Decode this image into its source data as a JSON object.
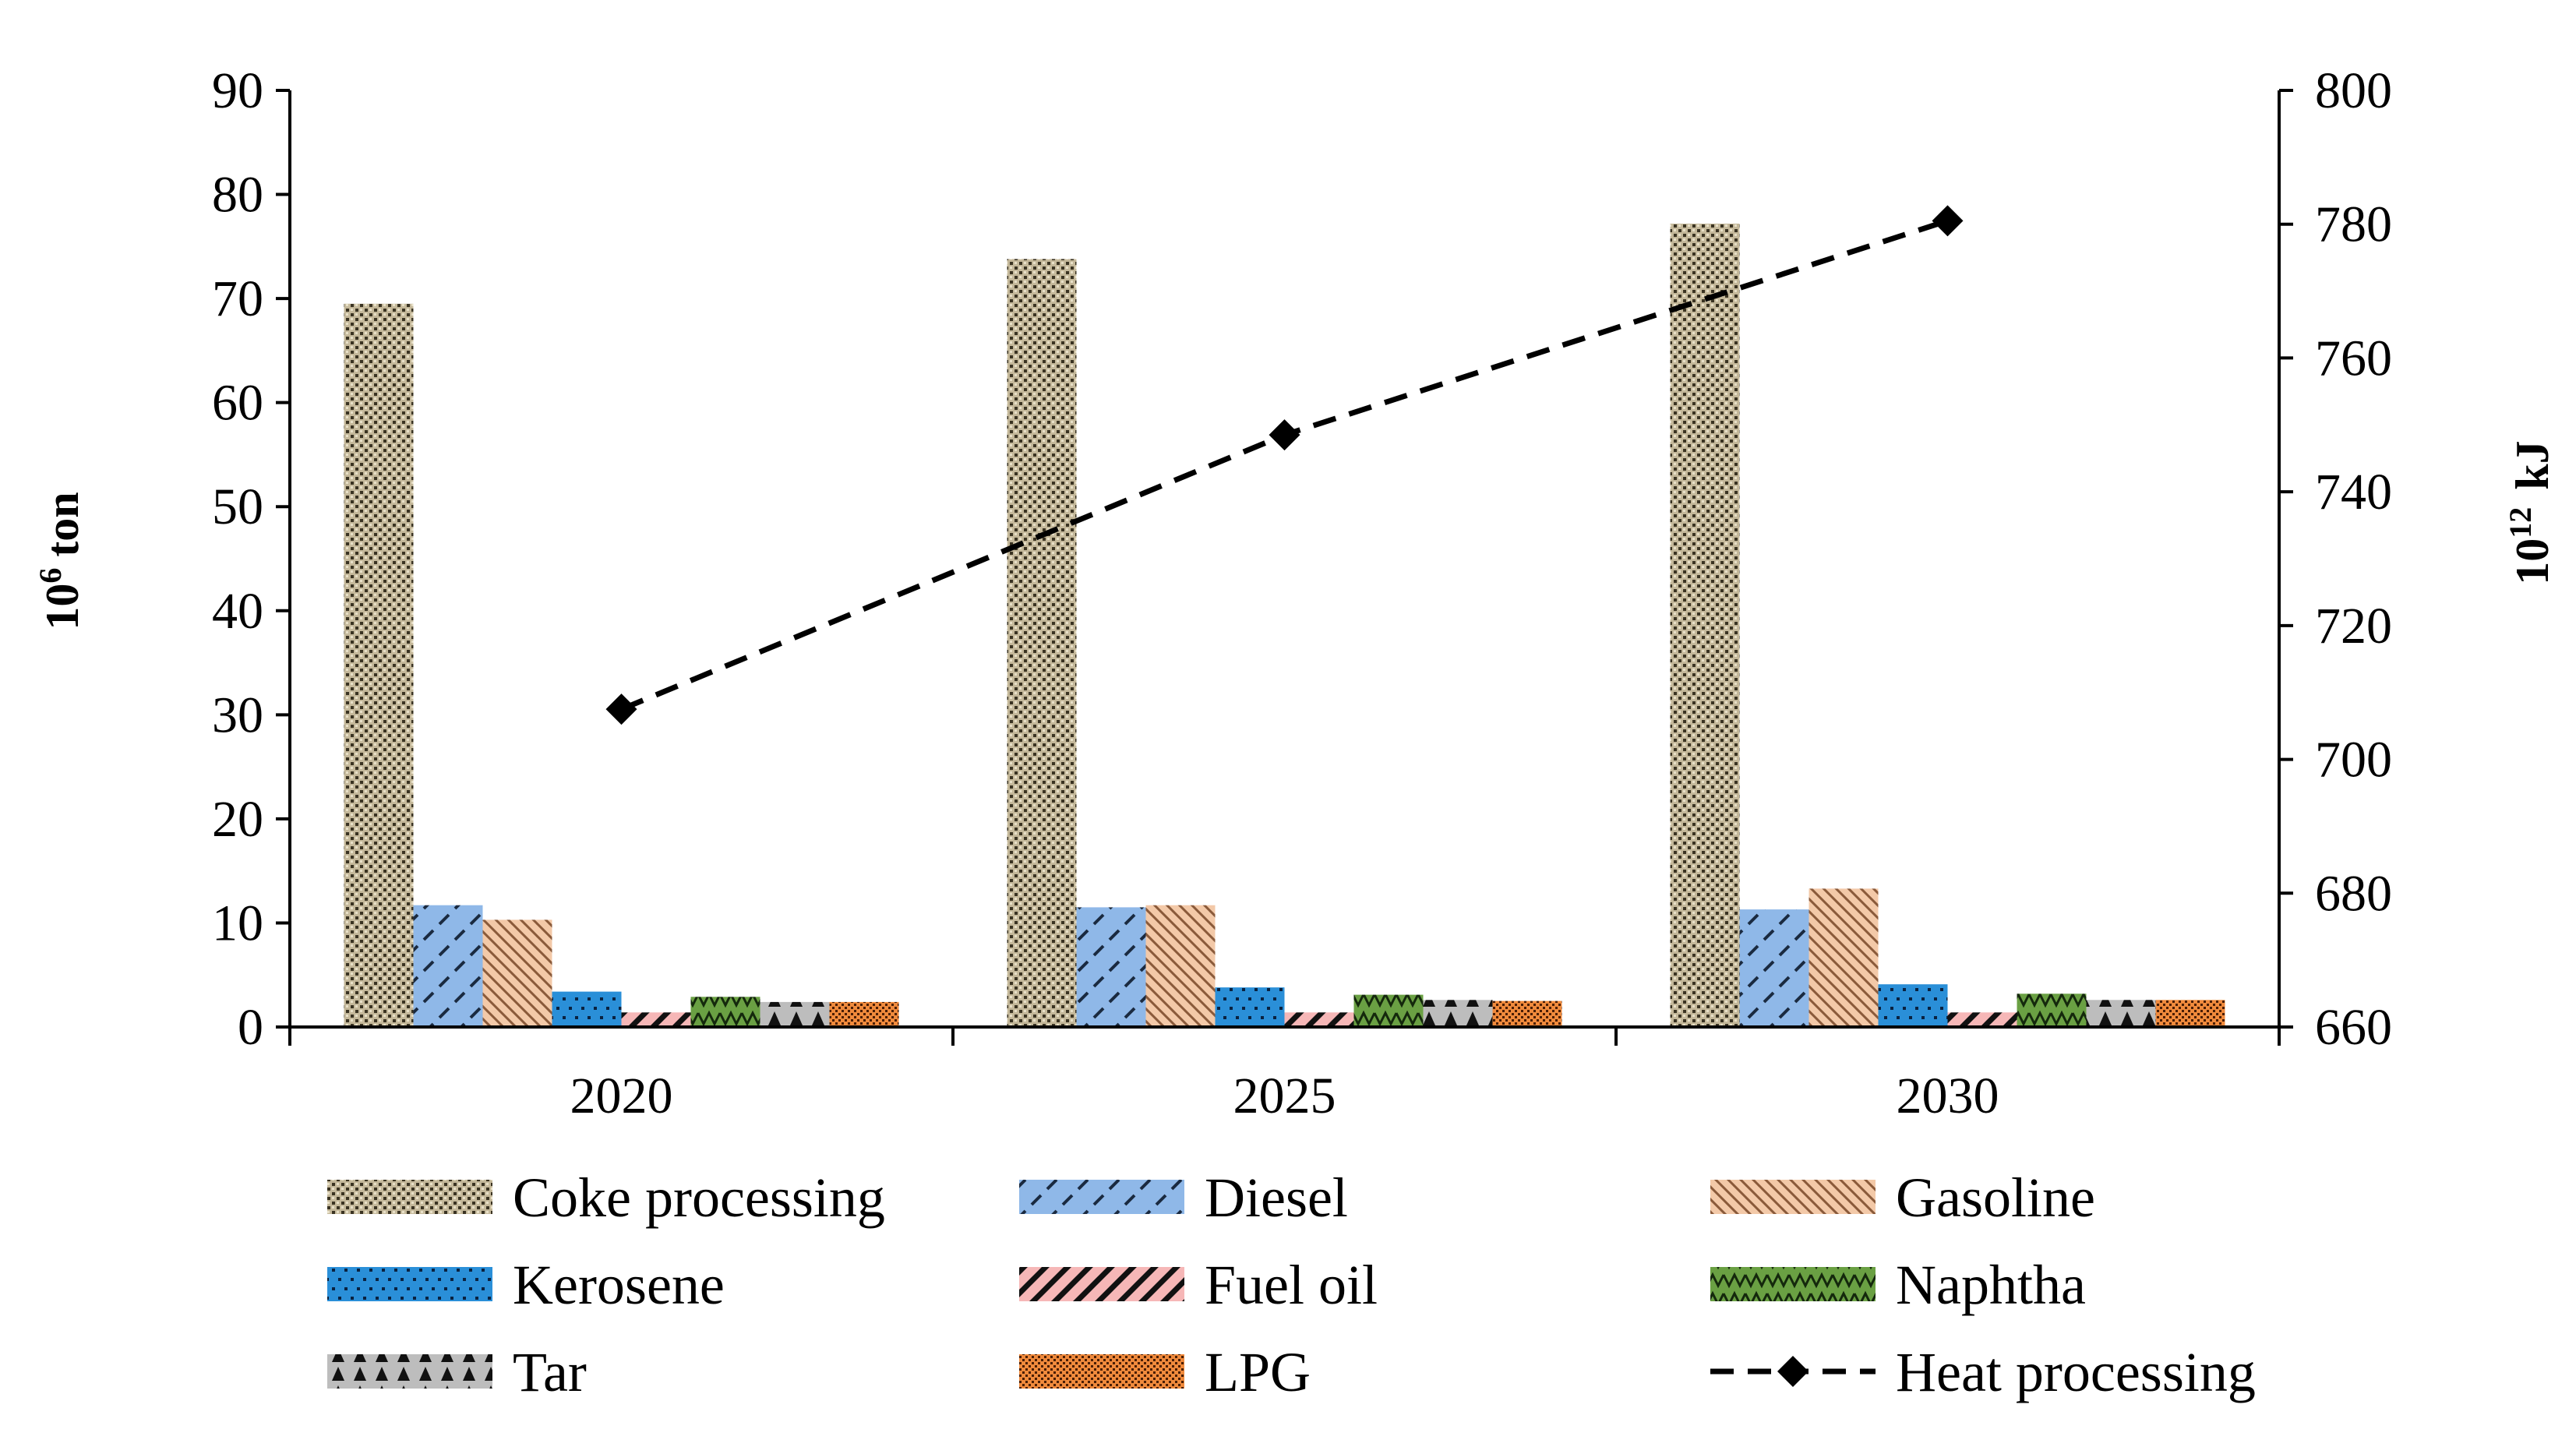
{
  "chart_data": {
    "type": "bar",
    "categories": [
      "2020",
      "2025",
      "2030"
    ],
    "series": [
      {
        "name": "Coke processing",
        "values": [
          69.5,
          73.8,
          77.2
        ],
        "color": "#a09570",
        "pattern": "checker"
      },
      {
        "name": "Diesel",
        "values": [
          11.7,
          11.5,
          11.3
        ],
        "color": "#8fb8e8",
        "pattern": "dash-diag"
      },
      {
        "name": "Gasoline",
        "values": [
          10.3,
          11.7,
          13.3
        ],
        "color": "#f3c9a8",
        "pattern": "back-diag"
      },
      {
        "name": "Kerosene",
        "values": [
          3.4,
          3.8,
          4.1
        ],
        "color": "#2a8fd8",
        "pattern": "dotted"
      },
      {
        "name": "Fuel oil",
        "values": [
          1.4,
          1.4,
          1.4
        ],
        "color": "#f6b7b7",
        "pattern": "wide-diag"
      },
      {
        "name": "Naphtha",
        "values": [
          2.9,
          3.1,
          3.2
        ],
        "color": "#6aa043",
        "pattern": "zigzag"
      },
      {
        "name": "Tar",
        "values": [
          2.4,
          2.6,
          2.6
        ],
        "color": "#bdbdbd",
        "pattern": "triangles"
      },
      {
        "name": "LPG",
        "values": [
          2.4,
          2.5,
          2.6
        ],
        "color": "#f08a3c",
        "pattern": "fine-grid"
      }
    ],
    "line_series": {
      "name": "Heat processing",
      "axis": "right",
      "values": [
        707.5,
        748.5,
        780.5
      ]
    },
    "y_left": {
      "label_base": "10",
      "label_exp": "6",
      "label_unit": "ton",
      "min": 0,
      "max": 90,
      "step": 10
    },
    "y_right": {
      "label_base": "10",
      "label_exp": "12",
      "label_unit": "kJ",
      "min": 660,
      "max": 800,
      "step": 20
    },
    "legend": {
      "position": "bottom",
      "columns": 3
    },
    "grid": false
  }
}
